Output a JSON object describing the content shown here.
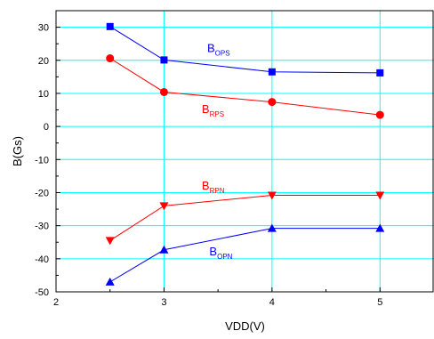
{
  "chart_data": {
    "type": "line",
    "xlabel": "VDD(V)",
    "ylabel": "B(Gs)",
    "xlim": [
      2,
      5.5
    ],
    "ylim": [
      -50,
      35
    ],
    "xticks": [
      2,
      3,
      4,
      5
    ],
    "yticks": [
      -50,
      -40,
      -30,
      -20,
      -10,
      0,
      10,
      20,
      30
    ],
    "grid": true,
    "colors": {
      "grid": "#00ffff",
      "blue": "#0000ff",
      "red": "#ff0000"
    },
    "series": [
      {
        "label_main": "B",
        "label_sub": "OPS",
        "color": "#0000ff",
        "marker": "square",
        "x": [
          2.5,
          3,
          4,
          5
        ],
        "y": [
          30.2,
          20.1,
          16.5,
          16.2
        ],
        "label_at": [
          3.4,
          22.5
        ]
      },
      {
        "label_main": "B",
        "label_sub": "RPS",
        "color": "#ff0000",
        "marker": "circle",
        "x": [
          2.5,
          3,
          4,
          5
        ],
        "y": [
          20.6,
          10.4,
          7.4,
          3.5
        ],
        "label_at": [
          3.35,
          4.0
        ]
      },
      {
        "label_main": "B",
        "label_sub": "RPN",
        "color": "#ff0000",
        "marker": "triangle-down",
        "x": [
          2.5,
          3,
          4,
          5
        ],
        "y": [
          -34.5,
          -24.0,
          -20.8,
          -20.8
        ],
        "label_at": [
          3.35,
          -19.0
        ]
      },
      {
        "label_main": "B",
        "label_sub": "OPN",
        "color": "#0000ff",
        "marker": "triangle-up",
        "x": [
          2.5,
          3,
          4,
          5
        ],
        "y": [
          -47.0,
          -37.3,
          -30.8,
          -30.8
        ],
        "label_at": [
          3.42,
          -39.0
        ]
      }
    ]
  }
}
